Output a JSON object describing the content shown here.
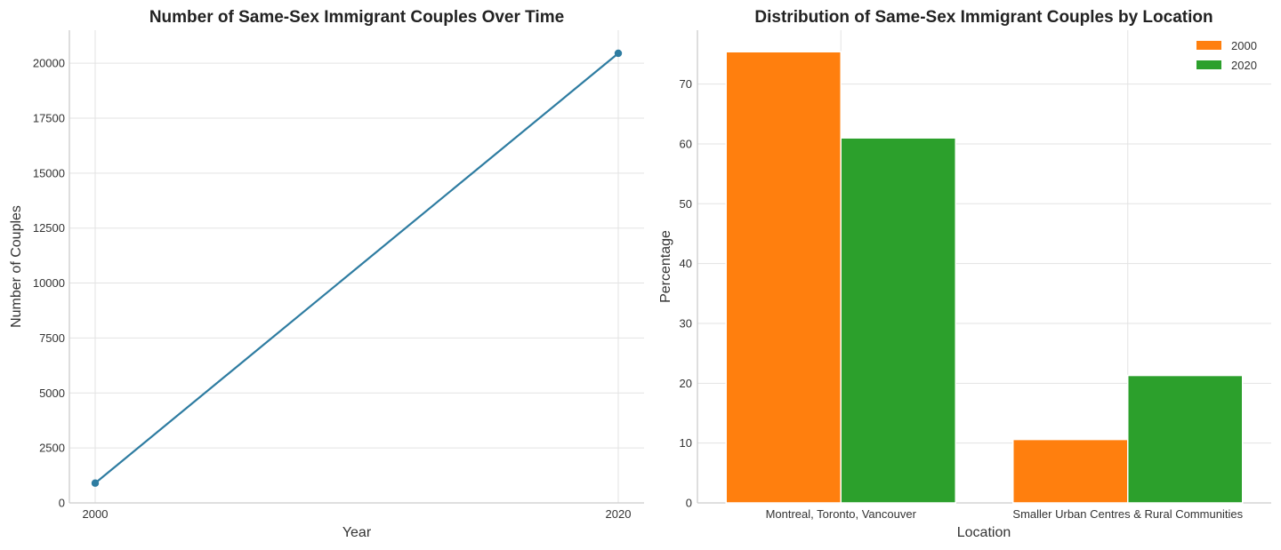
{
  "chart_data": [
    {
      "type": "line",
      "title": "Number of Same-Sex Immigrant Couples Over Time",
      "xlabel": "Year",
      "ylabel": "Number of Couples",
      "x": [
        2000,
        2020
      ],
      "x_tick_labels": [
        "2000",
        "2020"
      ],
      "series": [
        {
          "values": [
            900,
            20450
          ],
          "color": "#2e7ca1"
        }
      ],
      "ylim": [
        0,
        21500
      ],
      "y_ticks": [
        0,
        2500,
        5000,
        7500,
        10000,
        12500,
        15000,
        17500,
        20000
      ],
      "grid": true
    },
    {
      "type": "bar",
      "title": "Distribution of Same-Sex Immigrant Couples by Location",
      "xlabel": "Location",
      "ylabel": "Percentage",
      "categories": [
        "Montreal, Toronto, Vancouver",
        "Smaller Urban Centres & Rural Communities"
      ],
      "series": [
        {
          "name": "2000",
          "values": [
            75.4,
            10.6
          ],
          "color": "#ff7f0e"
        },
        {
          "name": "2020",
          "values": [
            61.0,
            21.3
          ],
          "color": "#2ca02c"
        }
      ],
      "ylim": [
        0,
        79
      ],
      "y_ticks": [
        0,
        10,
        20,
        30,
        40,
        50,
        60,
        70
      ],
      "legend_position": "top-right",
      "grid": true
    }
  ]
}
